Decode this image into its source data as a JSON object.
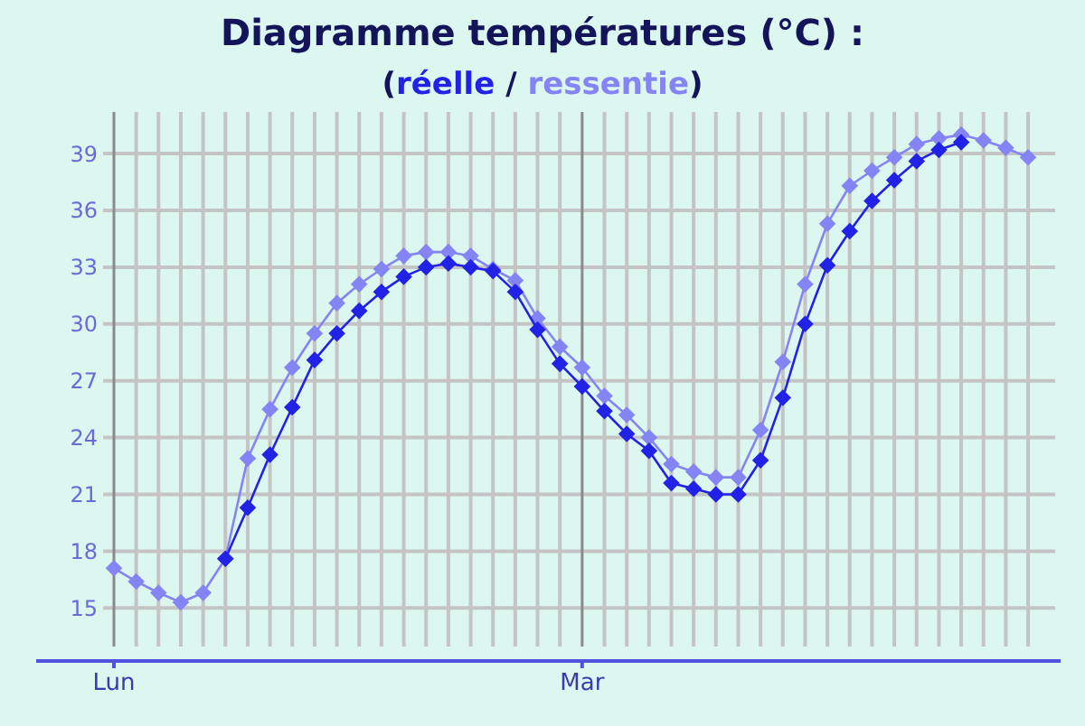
{
  "chart_data": {
    "type": "line",
    "title": "Diagramme températures (°C) :",
    "subtitle": "(réelle / ressentie)",
    "categories": [
      "Lun",
      null,
      null,
      null,
      null,
      null,
      null,
      null,
      null,
      null,
      null,
      null,
      null,
      null,
      null,
      null,
      null,
      null,
      null,
      null,
      null,
      "Mar",
      null,
      null,
      null,
      null,
      null,
      null,
      null,
      null,
      null,
      null,
      null,
      null,
      null,
      null,
      null,
      null,
      null,
      null,
      null,
      null
    ],
    "series": [
      {
        "color": "#2222e6",
        "values": [
          null,
          null,
          null,
          null,
          null,
          17.6,
          20.3,
          23.1,
          25.6,
          28.1,
          29.5,
          30.7,
          31.7,
          32.5,
          33.0,
          33.2,
          33.0,
          32.8,
          31.7,
          29.7,
          27.9,
          26.7,
          25.4,
          24.2,
          23.3,
          21.6,
          21.3,
          21.0,
          21.0,
          22.8,
          26.1,
          30.0,
          33.1,
          34.9,
          36.5,
          37.6,
          38.6,
          39.2,
          39.6,
          null,
          null,
          null
        ]
      },
      {
        "color": "#8484f4",
        "values": [
          17.1,
          16.4,
          15.8,
          15.3,
          15.8,
          17.6,
          22.9,
          25.5,
          27.7,
          29.5,
          31.1,
          32.1,
          32.9,
          33.6,
          33.8,
          33.8,
          33.6,
          32.9,
          32.3,
          30.3,
          28.8,
          27.7,
          26.2,
          25.2,
          24.0,
          22.6,
          22.2,
          21.9,
          21.9,
          24.4,
          28.0,
          32.1,
          35.3,
          37.3,
          38.1,
          38.8,
          39.5,
          39.8,
          40.0,
          39.7,
          39.3,
          38.8
        ]
      }
    ],
    "ylim": [
      12.2,
      41.2
    ],
    "yticks": [
      15,
      18,
      21,
      24,
      27,
      30,
      33,
      36,
      39
    ],
    "grid": true,
    "marker": "diamond",
    "line_style": "solid"
  }
}
